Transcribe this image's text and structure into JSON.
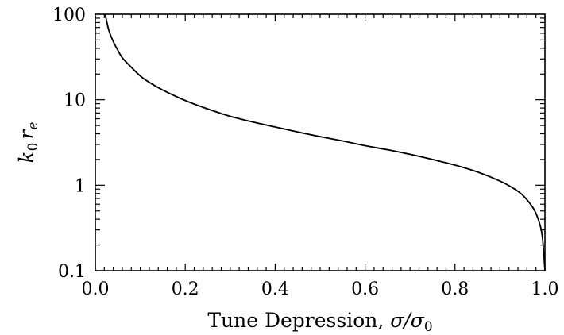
{
  "chart_data": {
    "type": "line",
    "title": "",
    "xlabel_text": "Tune Depression, ",
    "xlabel_math": "σ/σ",
    "xlabel_sub": "0",
    "ylabel_main": "k",
    "ylabel_sub1": "0",
    "ylabel_main2": "r",
    "ylabel_sub2": "e",
    "xlim": [
      0.0,
      1.0
    ],
    "ylim": [
      0.1,
      100
    ],
    "yscale": "log",
    "grid": false,
    "x_ticks": [
      {
        "value": 0.0,
        "label": "0.0"
      },
      {
        "value": 0.2,
        "label": "0.2"
      },
      {
        "value": 0.4,
        "label": "0.4"
      },
      {
        "value": 0.6,
        "label": "0.6"
      },
      {
        "value": 0.8,
        "label": "0.8"
      },
      {
        "value": 1.0,
        "label": "1.0"
      }
    ],
    "y_ticks": [
      {
        "value": 0.1,
        "label": "0.1"
      },
      {
        "value": 1,
        "label": "1"
      },
      {
        "value": 10,
        "label": "10"
      },
      {
        "value": 100,
        "label": "100"
      }
    ],
    "series": [
      {
        "color": "#000000",
        "x": [
          0.022,
          0.03,
          0.04,
          0.05,
          0.06,
          0.08,
          0.1,
          0.12,
          0.15,
          0.2,
          0.25,
          0.3,
          0.35,
          0.4,
          0.45,
          0.5,
          0.55,
          0.6,
          0.65,
          0.7,
          0.75,
          0.8,
          0.85,
          0.9,
          0.93,
          0.95,
          0.97,
          0.98,
          0.99,
          0.995,
          1.0
        ],
        "y": [
          100,
          65,
          48,
          38,
          31,
          24,
          19,
          16,
          13,
          9.8,
          7.8,
          6.4,
          5.5,
          4.8,
          4.2,
          3.7,
          3.3,
          2.9,
          2.6,
          2.3,
          2.0,
          1.72,
          1.43,
          1.12,
          0.92,
          0.77,
          0.58,
          0.47,
          0.33,
          0.23,
          0.1
        ]
      }
    ]
  }
}
